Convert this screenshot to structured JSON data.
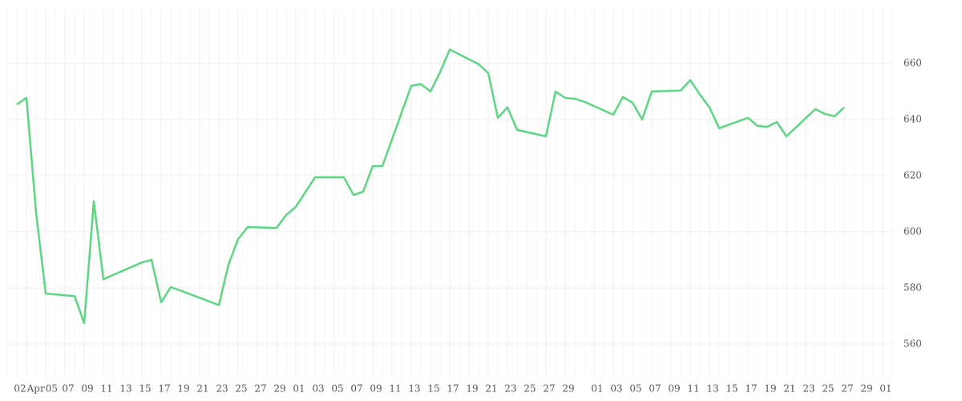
{
  "chart_data": {
    "type": "line",
    "color": "#5cd682",
    "x": [
      "04-02",
      "04-03",
      "04-04",
      "04-05",
      "04-08",
      "04-09",
      "04-10",
      "04-11",
      "04-12",
      "04-15",
      "04-16",
      "04-17",
      "04-18",
      "04-19",
      "04-23",
      "04-24",
      "04-25",
      "04-26",
      "04-29",
      "04-30",
      "05-01",
      "05-03",
      "05-06",
      "05-07",
      "05-08",
      "05-09",
      "05-10",
      "05-13",
      "05-14",
      "05-15",
      "05-16",
      "05-17",
      "05-20",
      "05-21",
      "05-22",
      "05-23",
      "05-24",
      "05-27",
      "05-28",
      "05-29",
      "05-30",
      "05-31",
      "06-03",
      "06-04",
      "06-05",
      "06-06",
      "06-07",
      "06-10",
      "06-11",
      "06-12",
      "06-13",
      "06-14",
      "06-17",
      "06-18",
      "06-19",
      "06-20",
      "06-21",
      "06-24",
      "06-25",
      "06-26",
      "06-27"
    ],
    "values": [
      645.4,
      647.7,
      606.9,
      578,
      577.1,
      567.4,
      610.9,
      583.1,
      584.6,
      589.1,
      590,
      574.9,
      580.3,
      579.1,
      573.9,
      588.3,
      597.4,
      601.7,
      601.4,
      606,
      608.9,
      619.4,
      619.4,
      613.1,
      614.3,
      623.4,
      623.4,
      652,
      652.6,
      650,
      656.9,
      664.9,
      659.7,
      656.6,
      640.6,
      644.3,
      636.3,
      634,
      650,
      647.7,
      647.4,
      646.3,
      641.7,
      648,
      646,
      640,
      650,
      650.3,
      654,
      648.9,
      644.3,
      636.9,
      640.6,
      637.7,
      637.4,
      639.1,
      634,
      643.7,
      642,
      641.1,
      644.3
    ],
    "xlim": [
      "04-01",
      "07-02"
    ],
    "xticks": [
      {
        "value": "04-02",
        "label": "02"
      },
      {
        "value": "04-03",
        "label": "Apr"
      },
      {
        "value": "04-05",
        "label": "05"
      },
      {
        "value": "04-07",
        "label": "07"
      },
      {
        "value": "04-09",
        "label": "09"
      },
      {
        "value": "04-11",
        "label": "11"
      },
      {
        "value": "04-13",
        "label": "13"
      },
      {
        "value": "04-15",
        "label": "15"
      },
      {
        "value": "04-17",
        "label": "17"
      },
      {
        "value": "04-19",
        "label": "19"
      },
      {
        "value": "04-21",
        "label": "21"
      },
      {
        "value": "04-23",
        "label": "23"
      },
      {
        "value": "04-25",
        "label": "25"
      },
      {
        "value": "04-27",
        "label": "27"
      },
      {
        "value": "04-29",
        "label": "29"
      },
      {
        "value": "05-01",
        "label": "01"
      },
      {
        "value": "05-03",
        "label": "03"
      },
      {
        "value": "05-05",
        "label": "05"
      },
      {
        "value": "05-07",
        "label": "07"
      },
      {
        "value": "05-09",
        "label": "09"
      },
      {
        "value": "05-11",
        "label": "11"
      },
      {
        "value": "05-13",
        "label": "13"
      },
      {
        "value": "05-15",
        "label": "15"
      },
      {
        "value": "05-17",
        "label": "17"
      },
      {
        "value": "05-19",
        "label": "19"
      },
      {
        "value": "05-21",
        "label": "21"
      },
      {
        "value": "05-23",
        "label": "23"
      },
      {
        "value": "05-25",
        "label": "25"
      },
      {
        "value": "05-27",
        "label": "27"
      },
      {
        "value": "05-29",
        "label": "29"
      },
      {
        "value": "06-01",
        "label": "01"
      },
      {
        "value": "06-03",
        "label": "03"
      },
      {
        "value": "06-05",
        "label": "05"
      },
      {
        "value": "06-07",
        "label": "07"
      },
      {
        "value": "06-09",
        "label": "09"
      },
      {
        "value": "06-11",
        "label": "11"
      },
      {
        "value": "06-13",
        "label": "13"
      },
      {
        "value": "06-15",
        "label": "15"
      },
      {
        "value": "06-17",
        "label": "17"
      },
      {
        "value": "06-19",
        "label": "19"
      },
      {
        "value": "06-21",
        "label": "21"
      },
      {
        "value": "06-23",
        "label": "23"
      },
      {
        "value": "06-25",
        "label": "25"
      },
      {
        "value": "06-27",
        "label": "27"
      },
      {
        "value": "06-29",
        "label": "29"
      },
      {
        "value": "07-01",
        "label": "01"
      }
    ],
    "ylim": [
      548.3,
      679.7
    ],
    "yticks": [
      560,
      580,
      600,
      620,
      640,
      660
    ],
    "grid": true
  }
}
